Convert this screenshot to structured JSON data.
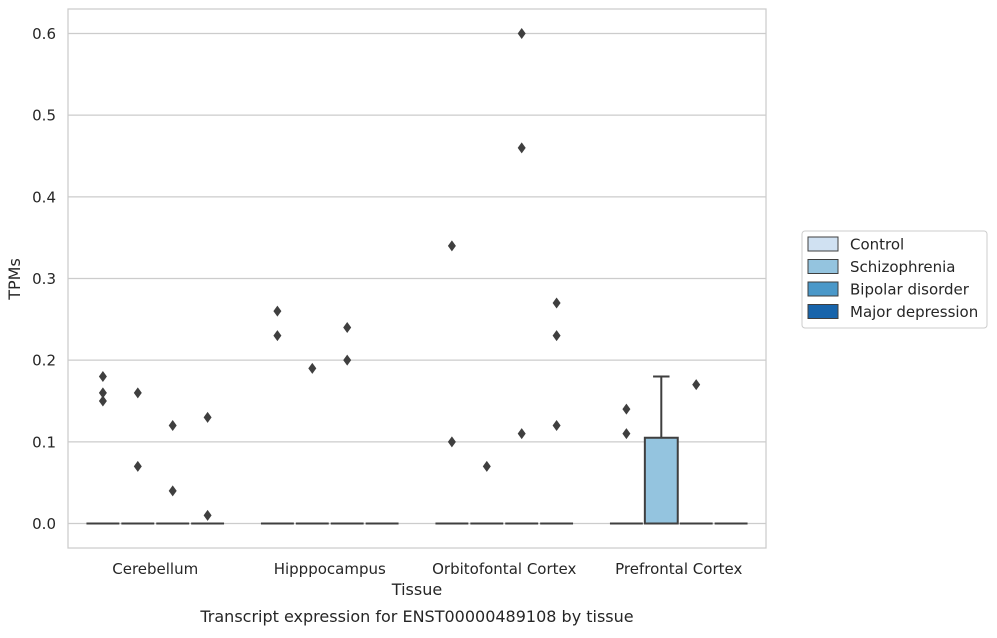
{
  "chart_data": {
    "type": "box",
    "title": "Transcript expression for ENST00000489108 by tissue",
    "xlabel": "Tissue",
    "ylabel": "TPMs",
    "ylim": [
      -0.03,
      0.63
    ],
    "yticks": [
      0.0,
      0.1,
      0.2,
      0.3,
      0.4,
      0.5,
      0.6
    ],
    "ytick_labels": [
      "0.0",
      "0.1",
      "0.2",
      "0.3",
      "0.4",
      "0.5",
      "0.6"
    ],
    "grid": "horizontal",
    "legend_placement": "outside-right",
    "categories": [
      "Cerebellum",
      "Hipppocampus",
      "Orbitofontal Cortex",
      "Prefrontal Cortex"
    ],
    "series": [
      {
        "name": "Control",
        "color": "#d0e1f2"
      },
      {
        "name": "Schizophrenia",
        "color": "#94c4df"
      },
      {
        "name": "Bipolar disorder",
        "color": "#4a98c9"
      },
      {
        "name": "Major depression",
        "color": "#1764ab"
      }
    ],
    "boxes": [
      {
        "category": "Cerebellum",
        "series": "Control",
        "q1": 0.0,
        "median": 0.0,
        "q3": 0.0,
        "whisker_low": 0.0,
        "whisker_high": 0.0,
        "outliers": [
          0.18,
          0.16,
          0.15
        ]
      },
      {
        "category": "Cerebellum",
        "series": "Schizophrenia",
        "q1": 0.0,
        "median": 0.0,
        "q3": 0.0,
        "whisker_low": 0.0,
        "whisker_high": 0.0,
        "outliers": [
          0.16,
          0.07
        ]
      },
      {
        "category": "Cerebellum",
        "series": "Bipolar disorder",
        "q1": 0.0,
        "median": 0.0,
        "q3": 0.0,
        "whisker_low": 0.0,
        "whisker_high": 0.0,
        "outliers": [
          0.12,
          0.04
        ]
      },
      {
        "category": "Cerebellum",
        "series": "Major depression",
        "q1": 0.0,
        "median": 0.0,
        "q3": 0.0,
        "whisker_low": 0.0,
        "whisker_high": 0.0,
        "outliers": [
          0.13,
          0.01
        ]
      },
      {
        "category": "Hipppocampus",
        "series": "Control",
        "q1": 0.0,
        "median": 0.0,
        "q3": 0.0,
        "whisker_low": 0.0,
        "whisker_high": 0.0,
        "outliers": [
          0.26,
          0.23
        ]
      },
      {
        "category": "Hipppocampus",
        "series": "Schizophrenia",
        "q1": 0.0,
        "median": 0.0,
        "q3": 0.0,
        "whisker_low": 0.0,
        "whisker_high": 0.0,
        "outliers": [
          0.19
        ]
      },
      {
        "category": "Hipppocampus",
        "series": "Bipolar disorder",
        "q1": 0.0,
        "median": 0.0,
        "q3": 0.0,
        "whisker_low": 0.0,
        "whisker_high": 0.0,
        "outliers": [
          0.24,
          0.2
        ]
      },
      {
        "category": "Hipppocampus",
        "series": "Major depression",
        "q1": 0.0,
        "median": 0.0,
        "q3": 0.0,
        "whisker_low": 0.0,
        "whisker_high": 0.0,
        "outliers": []
      },
      {
        "category": "Orbitofontal Cortex",
        "series": "Control",
        "q1": 0.0,
        "median": 0.0,
        "q3": 0.0,
        "whisker_low": 0.0,
        "whisker_high": 0.0,
        "outliers": [
          0.34,
          0.1
        ]
      },
      {
        "category": "Orbitofontal Cortex",
        "series": "Schizophrenia",
        "q1": 0.0,
        "median": 0.0,
        "q3": 0.0,
        "whisker_low": 0.0,
        "whisker_high": 0.0,
        "outliers": [
          0.07
        ]
      },
      {
        "category": "Orbitofontal Cortex",
        "series": "Bipolar disorder",
        "q1": 0.0,
        "median": 0.0,
        "q3": 0.0,
        "whisker_low": 0.0,
        "whisker_high": 0.0,
        "outliers": [
          0.6,
          0.46,
          0.11
        ]
      },
      {
        "category": "Orbitofontal Cortex",
        "series": "Major depression",
        "q1": 0.0,
        "median": 0.0,
        "q3": 0.0,
        "whisker_low": 0.0,
        "whisker_high": 0.0,
        "outliers": [
          0.27,
          0.23,
          0.12
        ]
      },
      {
        "category": "Prefrontal Cortex",
        "series": "Control",
        "q1": 0.0,
        "median": 0.0,
        "q3": 0.0,
        "whisker_low": 0.0,
        "whisker_high": 0.0,
        "outliers": [
          0.14,
          0.11
        ]
      },
      {
        "category": "Prefrontal Cortex",
        "series": "Schizophrenia",
        "q1": 0.0,
        "median": 0.0,
        "q3": 0.105,
        "whisker_low": 0.0,
        "whisker_high": 0.18,
        "outliers": []
      },
      {
        "category": "Prefrontal Cortex",
        "series": "Bipolar disorder",
        "q1": 0.0,
        "median": 0.0,
        "q3": 0.0,
        "whisker_low": 0.0,
        "whisker_high": 0.0,
        "outliers": [
          0.17
        ]
      },
      {
        "category": "Prefrontal Cortex",
        "series": "Major depression",
        "q1": 0.0,
        "median": 0.0,
        "q3": 0.0,
        "whisker_low": 0.0,
        "whisker_high": 0.0,
        "outliers": []
      }
    ]
  }
}
